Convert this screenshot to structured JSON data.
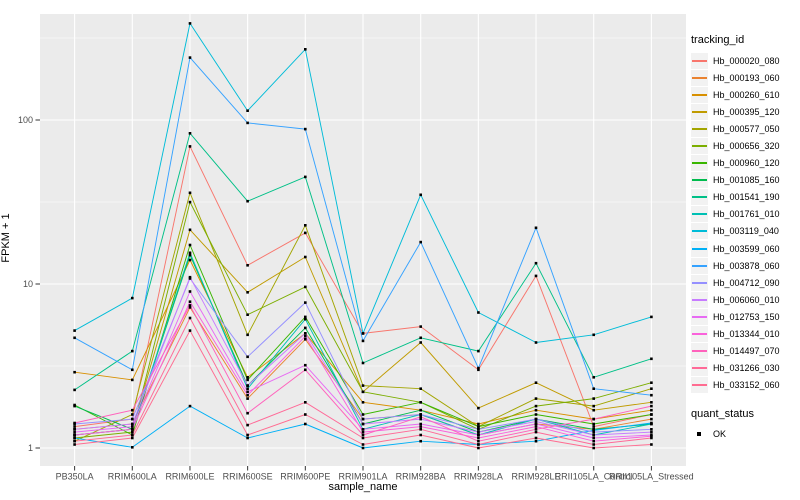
{
  "chart_data": {
    "type": "line",
    "title": "",
    "xlabel": "sample_name",
    "ylabel": "FPKM + 1",
    "y_scale": "log10",
    "y_ticks": [
      1,
      10,
      100
    ],
    "y_minor_ticks": [
      3.1623,
      31.623,
      316.23
    ],
    "ylim_px_note": "log scale, decade = 164px, y(1)=448",
    "x_categories": [
      "PB350LA",
      "RRIM600LA",
      "RRIM600LE",
      "RRIM600SE",
      "RRIM600PE",
      "RRIM901LA",
      "RRIM928BA",
      "RRIM928LA",
      "RRIM928LE",
      "RRII105LA_Control",
      "RRII105LA_Stressed"
    ],
    "legend_title": "tracking_id",
    "point_legend": {
      "title": "quant_status",
      "items": [
        {
          "label": "OK",
          "shape": "square",
          "color": "#000000"
        }
      ]
    },
    "panel_bg": "#EBEBEB",
    "grid_color": "#FFFFFF",
    "tick_label_color": "#4D4D4D",
    "tick_mark_color": "#333333",
    "series": [
      {
        "name": "Hb_000020_080",
        "color": "#F8766D",
        "values": [
          1.35,
          1.5,
          69,
          13,
          20.5,
          5.0,
          5.5,
          3.0,
          11.2,
          1.35,
          1.6
        ]
      },
      {
        "name": "Hb_000193_060",
        "color": "#EA8331",
        "values": [
          1.3,
          1.4,
          7.2,
          2.0,
          4.6,
          1.5,
          1.6,
          1.2,
          1.4,
          1.3,
          1.5
        ]
      },
      {
        "name": "Hb_000260_610",
        "color": "#D89000",
        "values": [
          2.9,
          2.6,
          14,
          2.7,
          5.0,
          1.9,
          1.7,
          1.4,
          1.7,
          1.5,
          1.7
        ]
      },
      {
        "name": "Hb_000395_120",
        "color": "#C09B00",
        "values": [
          1.2,
          1.3,
          21.4,
          8.9,
          14.6,
          2.2,
          4.4,
          1.75,
          2.5,
          1.7,
          1.9
        ]
      },
      {
        "name": "Hb_000577_050",
        "color": "#A3A500",
        "values": [
          1.1,
          1.6,
          36,
          4.9,
          22.8,
          2.4,
          2.3,
          1.35,
          2.0,
          1.8,
          2.3
        ]
      },
      {
        "name": "Hb_000656_320",
        "color": "#7CAE00",
        "values": [
          1.15,
          1.25,
          31.6,
          6.5,
          9.6,
          2.2,
          1.9,
          1.3,
          1.8,
          2.0,
          2.5
        ]
      },
      {
        "name": "Hb_000960_120",
        "color": "#39B600",
        "values": [
          1.83,
          1.2,
          17.3,
          2.6,
          6.3,
          1.6,
          1.9,
          1.35,
          1.6,
          1.4,
          1.6
        ]
      },
      {
        "name": "Hb_001085_160",
        "color": "#00BB4E",
        "values": [
          1.8,
          1.3,
          15,
          2.4,
          5.4,
          1.4,
          1.7,
          1.25,
          1.5,
          1.3,
          1.4
        ]
      },
      {
        "name": "Hb_001541_190",
        "color": "#00C087",
        "values": [
          2.26,
          3.9,
          83,
          32,
          45,
          3.3,
          4.7,
          3.9,
          13.4,
          2.7,
          3.5
        ]
      },
      {
        "name": "Hb_001761_010",
        "color": "#00C0B4",
        "values": [
          1.2,
          1.3,
          15.5,
          2.3,
          6.1,
          1.3,
          1.6,
          1.2,
          1.5,
          1.2,
          1.4
        ]
      },
      {
        "name": "Hb_003119_040",
        "color": "#00BCD8",
        "values": [
          5.2,
          8.2,
          388,
          114,
          270,
          5.0,
          35,
          6.7,
          4.4,
          4.9,
          6.3
        ]
      },
      {
        "name": "Hb_003599_060",
        "color": "#00B0F6",
        "values": [
          1.15,
          1.01,
          1.8,
          1.15,
          1.4,
          1.0,
          1.1,
          1.05,
          1.1,
          1.28,
          1.42
        ]
      },
      {
        "name": "Hb_003878_060",
        "color": "#35A2FF",
        "values": [
          4.7,
          3.0,
          240,
          96,
          88,
          4.5,
          18,
          3.07,
          22,
          2.3,
          2.1
        ]
      },
      {
        "name": "Hb_004712_090",
        "color": "#9590FF",
        "values": [
          1.4,
          1.5,
          10.8,
          3.6,
          7.7,
          1.5,
          1.6,
          1.3,
          1.5,
          1.25,
          1.3
        ]
      },
      {
        "name": "Hb_006060_010",
        "color": "#C77CFF",
        "values": [
          1.3,
          1.4,
          11,
          2.4,
          5.0,
          1.4,
          1.5,
          1.25,
          1.45,
          1.2,
          1.25
        ]
      },
      {
        "name": "Hb_012753_150",
        "color": "#E76BF3",
        "values": [
          1.25,
          1.35,
          9,
          2.2,
          3.2,
          1.3,
          1.4,
          1.2,
          1.4,
          1.15,
          1.2
        ]
      },
      {
        "name": "Hb_013344_010",
        "color": "#FA62DB",
        "values": [
          1.2,
          1.3,
          7.8,
          2.1,
          4.8,
          1.25,
          1.35,
          1.15,
          1.35,
          1.1,
          1.18
        ]
      },
      {
        "name": "Hb_014497_070",
        "color": "#FF62BC",
        "values": [
          1.42,
          1.7,
          7.4,
          1.63,
          3.0,
          1.2,
          1.55,
          1.1,
          1.3,
          1.5,
          1.8
        ]
      },
      {
        "name": "Hb_031266_030",
        "color": "#FF6A98",
        "values": [
          1.1,
          1.2,
          6.2,
          1.38,
          1.9,
          1.15,
          1.3,
          1.05,
          1.25,
          1.05,
          1.15
        ]
      },
      {
        "name": "Hb_033152_060",
        "color": "#FF6C91",
        "values": [
          1.05,
          1.15,
          5.2,
          1.2,
          1.6,
          1.05,
          1.2,
          1.0,
          1.15,
          1.0,
          1.05
        ]
      }
    ]
  }
}
